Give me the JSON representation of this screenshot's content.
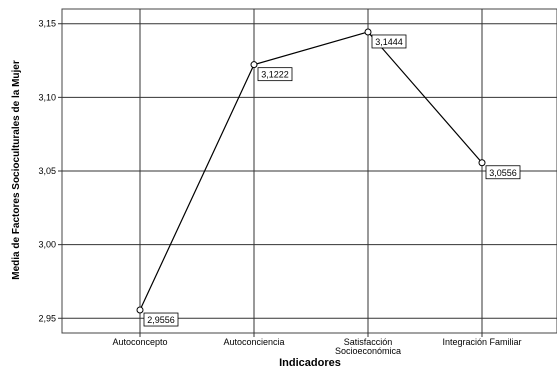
{
  "chart_data": {
    "type": "line",
    "categories": [
      "Autoconcepto",
      "Autoconciencia",
      "Satisfacción Socioeconómica",
      "Integración Familiar"
    ],
    "category_label_lines": [
      [
        "Autoconcepto"
      ],
      [
        "Autoconciencia"
      ],
      [
        "Satisfacción",
        "Socioeconómica"
      ],
      [
        "Integración Familiar"
      ]
    ],
    "values": [
      2.9556,
      3.1222,
      3.1444,
      3.0556
    ],
    "data_labels": [
      "2,9556",
      "3,1222",
      "3,1444",
      "3,0556"
    ],
    "xlabel": "Indicadores",
    "ylabel": "Media de Factores Socioculturales de la Mujer",
    "ylim": [
      2.94,
      3.16
    ],
    "yticks": [
      2.95,
      3.0,
      3.05,
      3.1,
      3.15
    ],
    "ytick_labels": [
      "2,95",
      "3,00",
      "3,05",
      "3,10",
      "3,15"
    ],
    "grid": true,
    "markers": "open-circle",
    "colors": {
      "line": "#000000",
      "grid": "#333333",
      "background": "#ffffff"
    }
  }
}
